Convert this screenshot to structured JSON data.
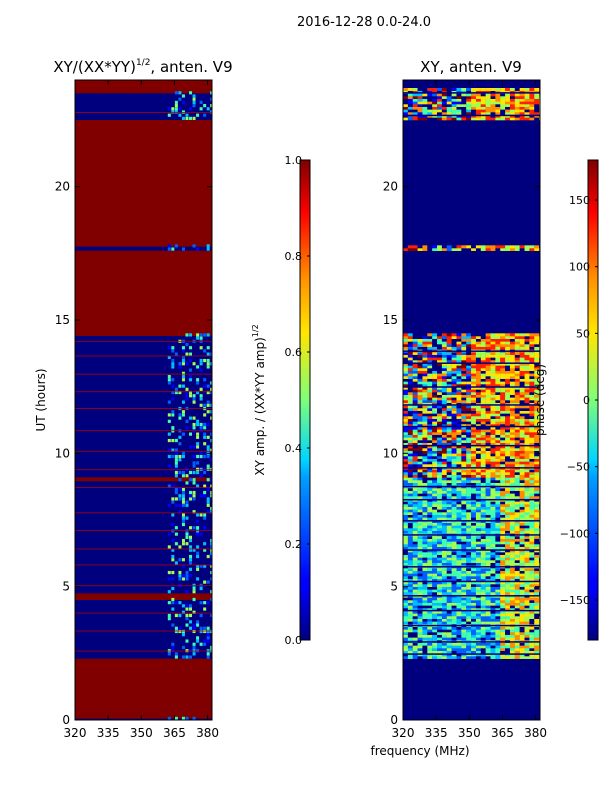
{
  "suptitle": "2016-12-28 0.0-24.0",
  "shared_xlabel": "frequency (MHz)",
  "colors": {
    "amp_bg": "#800000",
    "phase_bg": "#00007f",
    "frame": "#000000"
  },
  "chart_data": [
    {
      "type": "heatmap",
      "title_main": "XY/(XX*YY)",
      "title_sup": "1/2",
      "title_tail": ", anten. V9",
      "xlabel": "",
      "ylabel": "UT (hours)",
      "xlim": [
        320,
        382
      ],
      "ylim": [
        0,
        24
      ],
      "xticks": [
        320,
        335,
        350,
        365,
        380
      ],
      "yticks": [
        0,
        5,
        10,
        15,
        20
      ],
      "colorbar": {
        "label": "XY amp. / (XX*YY amp)",
        "label_sup": "1/2",
        "range": [
          0.0,
          1.0
        ],
        "ticks": [
          0.0,
          0.2,
          0.4,
          0.6,
          0.8,
          1.0
        ],
        "tick_labels": [
          "0.0",
          "0.2",
          "0.4",
          "0.6",
          "0.8",
          "1.0"
        ],
        "colormap": "jet"
      }
    },
    {
      "type": "heatmap",
      "title_main": "XY, anten. V9",
      "title_sup": "",
      "title_tail": "",
      "xlabel": "",
      "ylabel": "",
      "xlim": [
        320,
        382
      ],
      "ylim": [
        0,
        24
      ],
      "xticks": [
        320,
        335,
        350,
        365,
        380
      ],
      "yticks": [
        0,
        5,
        10,
        15,
        20
      ],
      "colorbar": {
        "label": "phase (deg)",
        "label_sup": "",
        "range": [
          -180,
          180
        ],
        "ticks": [
          -150,
          -100,
          -50,
          0,
          50,
          100,
          150
        ],
        "tick_labels": [
          "−150",
          "−100",
          "−50",
          "0",
          "50",
          "100",
          "150"
        ],
        "colormap": "jet"
      }
    }
  ]
}
